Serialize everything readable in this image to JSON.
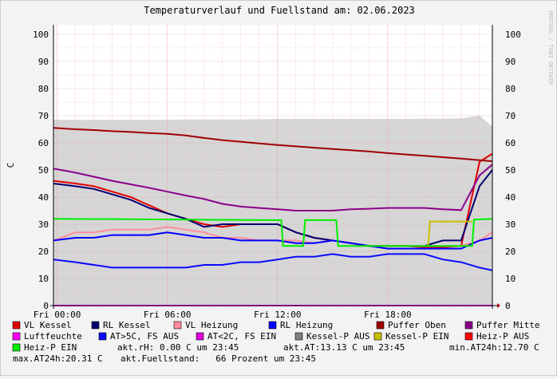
{
  "chart_data": {
    "type": "line",
    "title": "Temperaturverlauf und Fuellstand am: 02.06.2023",
    "y_label": "C",
    "watermark": "RRDTOOL / TOBI OETIKER",
    "xlim": [
      -0.2,
      23.7
    ],
    "xticks": [
      {
        "value": 0,
        "label": "Fri 00:00"
      },
      {
        "value": 6,
        "label": "Fri 06:00"
      },
      {
        "value": 12,
        "label": "Fri 12:00"
      },
      {
        "value": 18,
        "label": "Fri 18:00"
      }
    ],
    "ylim": [
      0,
      103.5
    ],
    "yticks": [
      0,
      10,
      20,
      30,
      40,
      50,
      60,
      70,
      80,
      90,
      100
    ],
    "grid": true,
    "x": [
      -0.2,
      1,
      2,
      3,
      4,
      5,
      6,
      7,
      8,
      9,
      10,
      11,
      12,
      13,
      14,
      15,
      16,
      17,
      18,
      19,
      20,
      21,
      22,
      23,
      23.7
    ],
    "area": {
      "color": "#d6d6d6",
      "values": [
        68.5,
        68.5,
        68.5,
        68.5,
        68.5,
        68.5,
        68.5,
        68.6,
        68.6,
        68.6,
        68.6,
        68.7,
        68.8,
        68.8,
        68.8,
        68.8,
        68.8,
        68.8,
        68.8,
        68.8,
        68.9,
        68.9,
        69,
        70,
        66
      ]
    },
    "series": [
      {
        "name": "VL Kessel",
        "color": "#e00000",
        "values": [
          46,
          45,
          44,
          42,
          40,
          37,
          34,
          32,
          30,
          29,
          30,
          30,
          30,
          27,
          25,
          24,
          23,
          22,
          22,
          22,
          21.5,
          21.5,
          22,
          53,
          56
        ]
      },
      {
        "name": "RL Kessel",
        "color": "#000070",
        "values": [
          45,
          44,
          43,
          41,
          39,
          36,
          34,
          32,
          29,
          30,
          30,
          30,
          30,
          27,
          25,
          24,
          23,
          22,
          22,
          22,
          22,
          24,
          24,
          44,
          50
        ]
      },
      {
        "name": "VL Heizung",
        "color": "#ff8c9c",
        "values": [
          24,
          27,
          27,
          28,
          28,
          28,
          29,
          28,
          27,
          25,
          25,
          24,
          24,
          24,
          23,
          24,
          23,
          22,
          22,
          22,
          22,
          22,
          22,
          24,
          27
        ]
      },
      {
        "name": "RL Heizung",
        "color": "#0000ff",
        "values": [
          24,
          25,
          25,
          26,
          26,
          26,
          27,
          26,
          25,
          25,
          24,
          24,
          24,
          23,
          23,
          24,
          23,
          22,
          21,
          21,
          21,
          21,
          21,
          24,
          25
        ]
      },
      {
        "name": "Puffer Oben",
        "color": "#a00000",
        "values": [
          65.5,
          65,
          64.7,
          64.3,
          64,
          63.6,
          63.3,
          62.7,
          61.8,
          61,
          60.4,
          59.8,
          59.2,
          58.7,
          58.2,
          57.7,
          57.3,
          56.8,
          56.2,
          55.7,
          55.2,
          54.7,
          54.2,
          53.6,
          53.2
        ]
      },
      {
        "name": "Puffer Mitte",
        "color": "#8b008b",
        "values": [
          50.5,
          49,
          47.5,
          46,
          44.7,
          43.4,
          42,
          40.6,
          39.3,
          37.5,
          36.5,
          36,
          35.5,
          35,
          35,
          35,
          35.5,
          35.7,
          36,
          36,
          36,
          35.5,
          35.2,
          48,
          52
        ]
      },
      {
        "name": "Luftfeuchte",
        "color": "#ff00ff",
        "values": [
          0,
          0,
          0,
          0,
          0,
          0,
          0,
          0,
          0,
          0,
          0,
          0,
          0,
          0,
          0,
          0,
          0,
          0,
          0,
          0,
          0,
          0,
          0,
          0,
          0
        ]
      },
      {
        "name": "AT>5C, FS AUS",
        "color": "#0a0aff",
        "values": [
          17,
          16,
          15,
          14,
          14,
          14,
          14,
          14,
          15,
          15,
          16,
          16,
          17,
          18,
          18,
          19,
          18,
          18,
          19,
          19,
          19,
          17,
          16,
          14,
          13
        ]
      },
      {
        "name": "AT<2C, FS EIN",
        "color": "#dd00dd",
        "values": [
          null,
          null,
          null,
          null,
          null,
          null,
          null,
          null,
          null,
          null,
          null,
          null,
          null,
          null,
          null,
          null,
          null,
          null,
          null,
          null,
          null,
          null,
          null,
          null,
          null
        ]
      },
      {
        "name": "Kessel-P AUS",
        "color": "#808080",
        "values": [
          null,
          null,
          null,
          null,
          null,
          null,
          null,
          null,
          null,
          null,
          null,
          null,
          null,
          null,
          null,
          null,
          null,
          null,
          null,
          null,
          null,
          null,
          null,
          null,
          null
        ]
      },
      {
        "name": "Kessel-P EIN",
        "color": "#c8c000",
        "x": [
          20.2,
          20.3,
          22.6
        ],
        "values": [
          22,
          31,
          31
        ]
      },
      {
        "name": "Heiz-P AUS",
        "color": "#ff0000",
        "values": [
          null,
          null,
          null,
          null,
          null,
          null,
          null,
          null,
          null,
          null,
          null,
          null,
          null,
          null,
          null,
          null,
          null,
          null,
          null,
          null,
          null,
          null,
          null,
          null,
          null
        ]
      },
      {
        "name": "Heiz-P EIN",
        "color": "#00ee00",
        "x": [
          -0.2,
          12.2,
          12.3,
          13.4,
          13.5,
          15.2,
          15.3,
          22.6,
          22.7,
          23.7
        ],
        "values": [
          32,
          31.5,
          22,
          22,
          31.5,
          31.5,
          22,
          22,
          31.7,
          32
        ]
      }
    ],
    "stats": [
      "akt.rH: 0.00 C um 23:45",
      "akt.AT:13.13 C um 23:45",
      "min.AT24h:12.70 C",
      "max.AT24h:20.31 C",
      "akt.Fuellstand:   66 Prozent um 23:45"
    ]
  }
}
